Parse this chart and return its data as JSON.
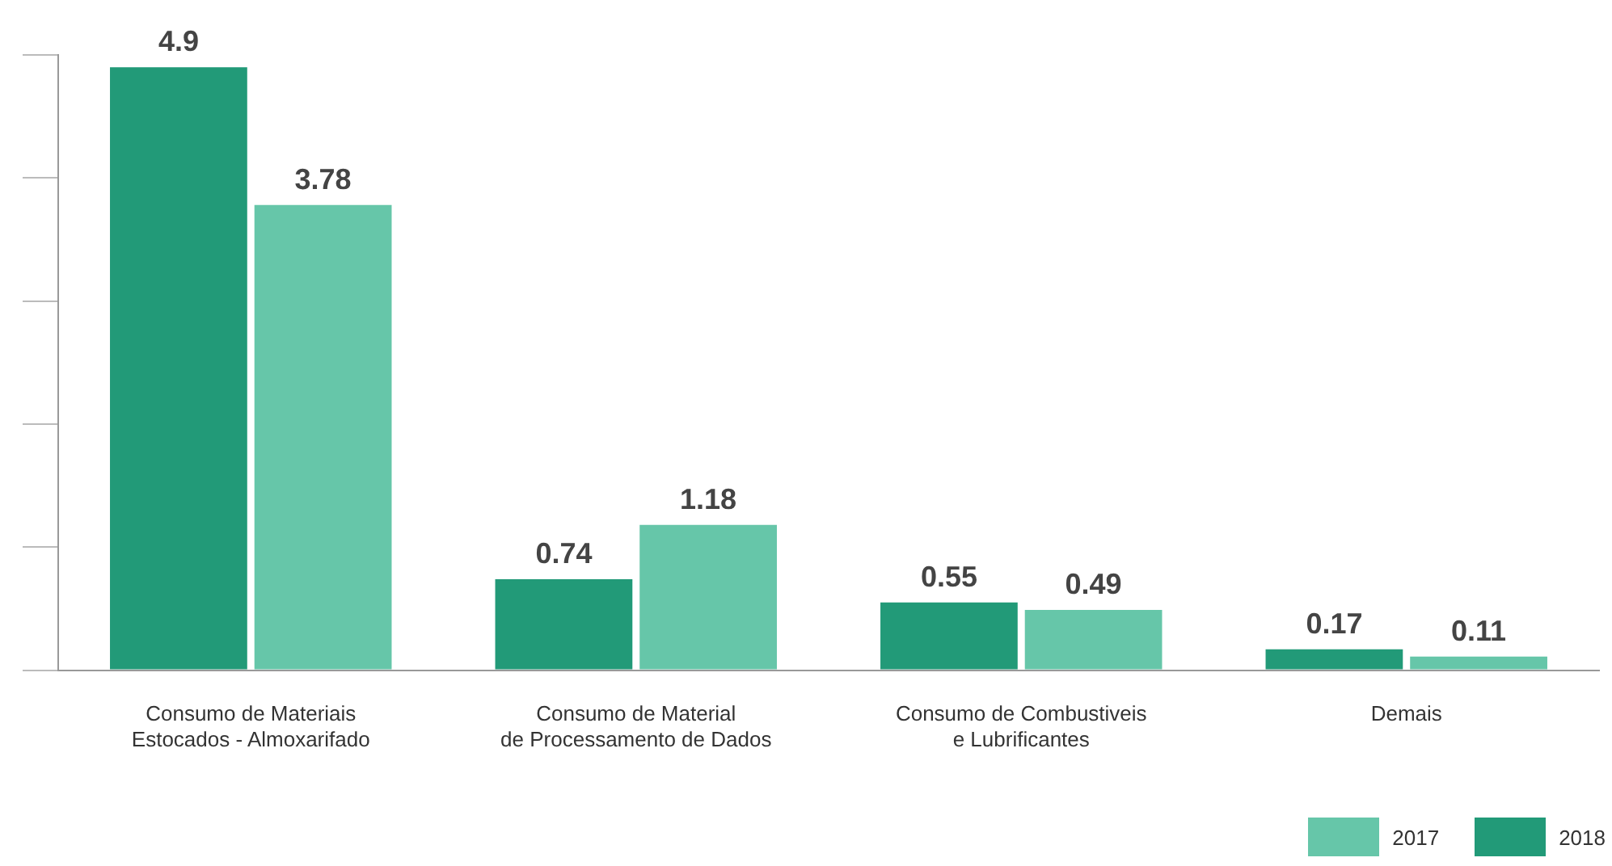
{
  "chart_data": {
    "type": "bar",
    "categories": [
      "Consumo de Materiais\nEstocados - Almoxarifado",
      "Consumo de Material\nde Processamento de Dados",
      "Consumo de Combustiveis\ne Lubrificantes",
      "Demais"
    ],
    "series": [
      {
        "name": "2018",
        "color": "#229a78",
        "values": [
          4.9,
          0.74,
          0.55,
          0.17
        ]
      },
      {
        "name": "2017",
        "color": "#66c6a9",
        "values": [
          3.78,
          1.18,
          0.49,
          0.11
        ]
      }
    ],
    "tick_labels": "x",
    "grid": false,
    "legend": "bottom right",
    "data_labels": true
  }
}
